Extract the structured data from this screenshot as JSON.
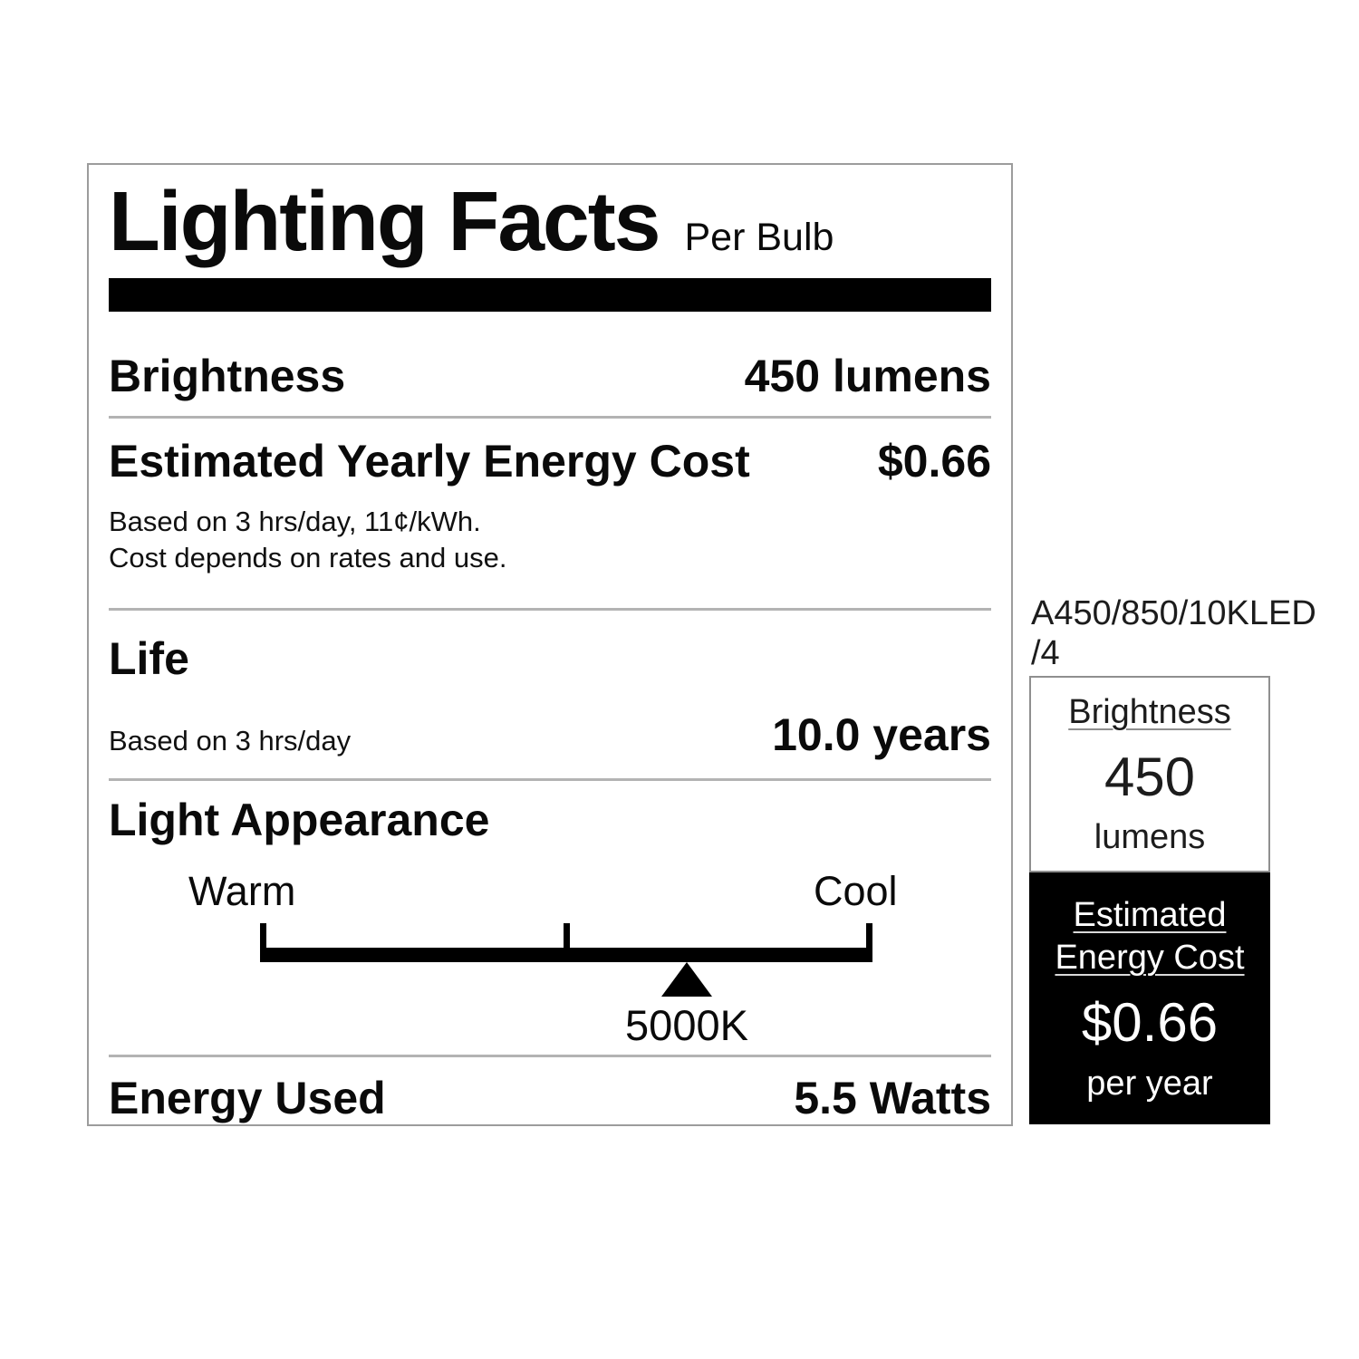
{
  "label": {
    "title": "Lighting Facts",
    "subtitle": "Per Bulb",
    "brightness": {
      "label": "Brightness",
      "value": "450 lumens"
    },
    "energy_cost": {
      "label": "Estimated Yearly Energy Cost",
      "value": "$0.66",
      "note_line1": "Based on 3 hrs/day, 11¢/kWh.",
      "note_line2": "Cost depends on rates and use."
    },
    "life": {
      "label": "Life",
      "note": "Based on 3 hrs/day",
      "value": "10.0 years"
    },
    "light_appearance": {
      "label": "Light Appearance",
      "warm_label": "Warm",
      "cool_label": "Cool",
      "kelvin_label": "5000K",
      "marker_position_pct": 69.6
    },
    "energy_used": {
      "label": "Energy Used",
      "value": "5.5 Watts"
    }
  },
  "side_panel": {
    "model_number": "A450/850/10KLED\n/4",
    "brightness_box": {
      "title": "Brightness",
      "value": "450",
      "unit": "lumens"
    },
    "cost_box": {
      "title": "Estimated Energy Cost",
      "value": "$0.66",
      "unit": "per year"
    }
  },
  "colors": {
    "text": "#0a0a0a",
    "bar": "#000000",
    "divider": "#b3b3b3",
    "panel_border": "#9c9c9c",
    "cost_box_bg": "#000000",
    "cost_box_text": "#ffffff"
  }
}
